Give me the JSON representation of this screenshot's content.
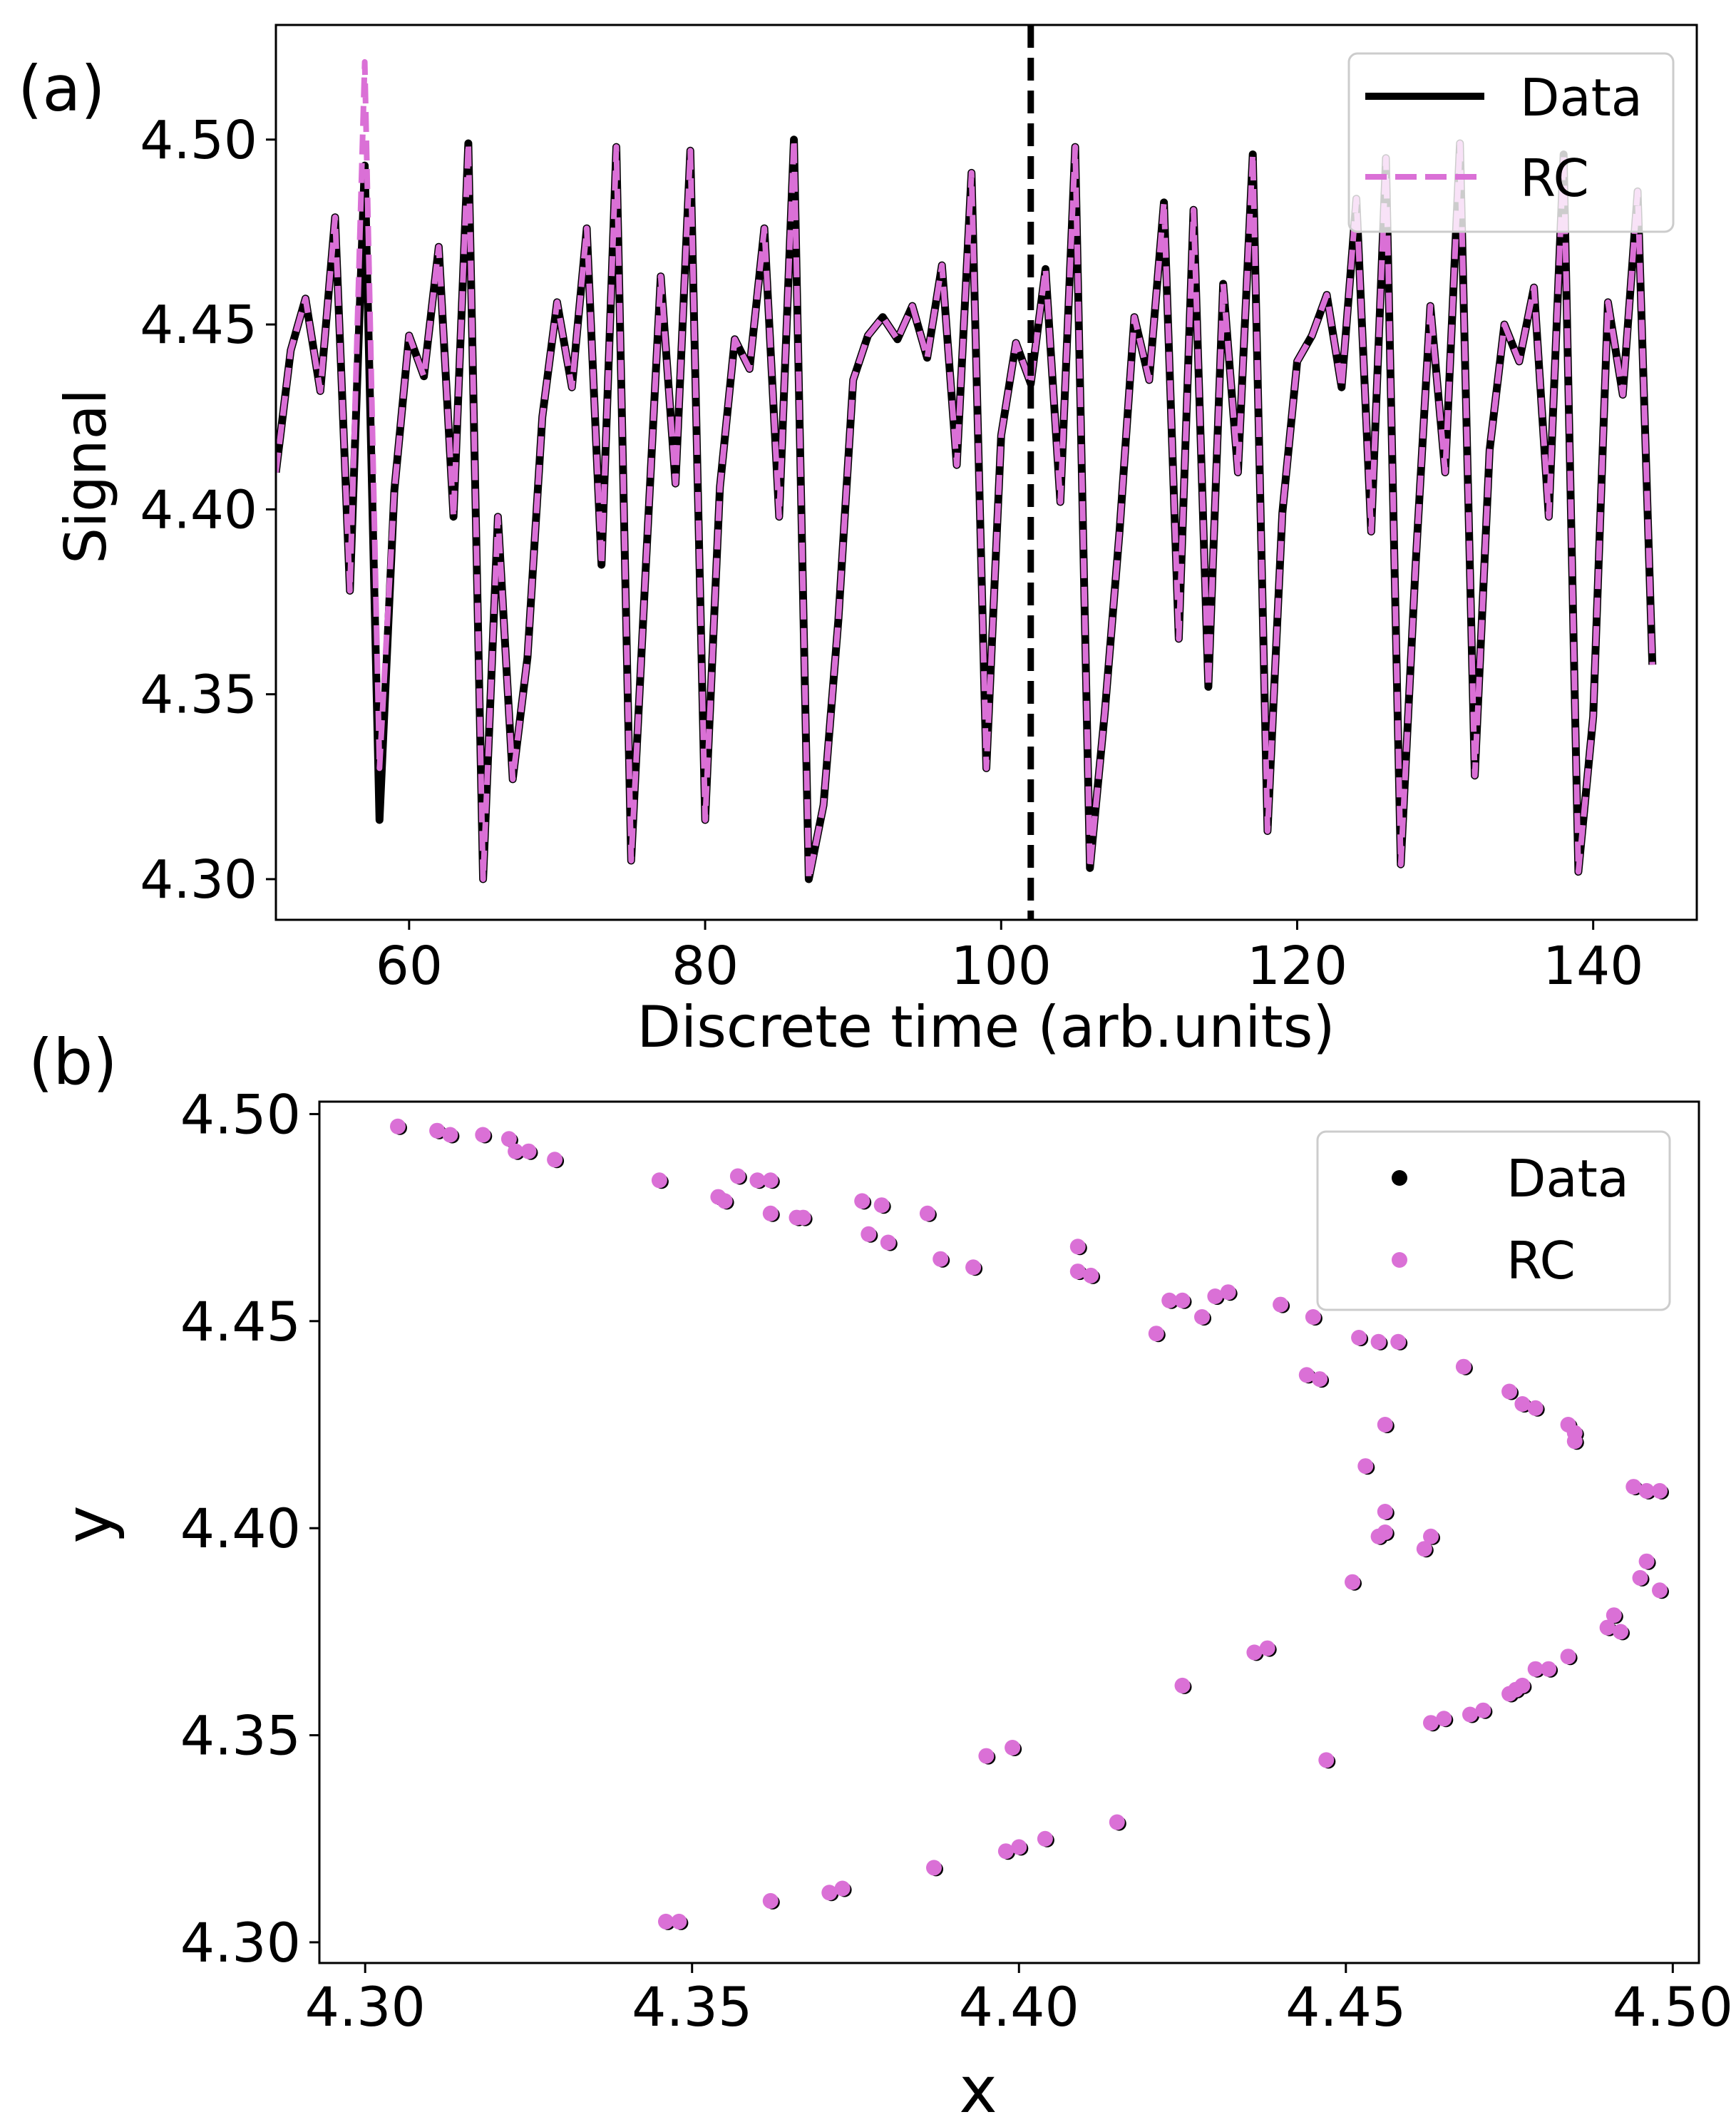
{
  "colors": {
    "data": "#000000",
    "rc": "#da70d6",
    "axis": "#000000",
    "legend_border": "#cccccc"
  },
  "chart_data": [
    {
      "panel": "(a)",
      "type": "line",
      "xlabel": "Discrete time (arb.units)",
      "ylabel": "Signal",
      "xlim": [
        51,
        147
      ],
      "ylim": [
        4.289,
        4.531
      ],
      "xticks": [
        "60",
        "80",
        "100",
        "120",
        "140"
      ],
      "xtick_values": [
        60,
        80,
        100,
        120,
        140
      ],
      "yticks": [
        "4.30",
        "4.35",
        "4.40",
        "4.45",
        "4.50"
      ],
      "ytick_values": [
        4.3,
        4.35,
        4.4,
        4.45,
        4.5
      ],
      "vline_x": 102,
      "legend": [
        "Data",
        "RC"
      ],
      "legend_position": "top-right",
      "series": [
        {
          "name": "Data",
          "x_start": 51,
          "values": [
            4.41,
            4.443,
            4.457,
            4.432,
            4.479,
            4.378,
            4.493,
            4.316,
            4.405,
            4.447,
            4.436,
            4.471,
            4.398,
            4.499,
            4.3,
            4.398,
            4.327,
            4.36,
            4.425,
            4.456,
            4.433,
            4.476,
            4.385,
            4.498,
            4.305,
            4.385,
            4.463,
            4.407,
            4.497,
            4.316,
            4.406,
            4.446,
            4.438,
            4.476,
            4.398,
            4.5,
            4.3,
            4.32,
            4.37,
            4.435,
            4.447,
            4.452,
            4.446,
            4.455,
            4.441,
            4.466,
            4.412,
            4.491,
            4.33,
            4.42,
            4.445,
            4.434,
            4.465,
            4.402,
            4.498,
            4.303,
            4.345,
            4.394,
            4.452,
            4.435,
            4.483,
            4.365,
            4.481,
            4.352,
            4.461,
            4.41,
            4.496,
            4.313,
            4.399,
            4.44,
            4.447,
            4.458,
            4.433,
            4.484,
            4.394,
            4.495,
            4.304,
            4.385,
            4.455,
            4.41,
            4.499,
            4.328,
            4.416,
            4.45,
            4.44,
            4.46,
            4.398,
            4.496,
            4.302,
            4.344,
            4.456,
            4.431,
            4.486,
            4.358
          ]
        },
        {
          "name": "RC",
          "x_start": 51,
          "values": [
            4.41,
            4.443,
            4.457,
            4.432,
            4.479,
            4.378,
            4.521,
            4.33,
            4.405,
            4.447,
            4.436,
            4.471,
            4.398,
            4.499,
            4.3,
            4.398,
            4.327,
            4.36,
            4.425,
            4.456,
            4.433,
            4.476,
            4.385,
            4.498,
            4.305,
            4.385,
            4.463,
            4.407,
            4.497,
            4.316,
            4.406,
            4.446,
            4.438,
            4.476,
            4.398,
            4.5,
            4.3,
            4.32,
            4.37,
            4.435,
            4.447,
            4.452,
            4.446,
            4.455,
            4.441,
            4.466,
            4.412,
            4.491,
            4.33,
            4.42,
            4.445,
            4.434,
            4.465,
            4.402,
            4.498,
            4.303,
            4.345,
            4.394,
            4.452,
            4.435,
            4.483,
            4.365,
            4.481,
            4.352,
            4.461,
            4.41,
            4.496,
            4.313,
            4.399,
            4.44,
            4.447,
            4.458,
            4.433,
            4.484,
            4.394,
            4.495,
            4.304,
            4.385,
            4.455,
            4.41,
            4.499,
            4.328,
            4.416,
            4.45,
            4.44,
            4.46,
            4.398,
            4.496,
            4.302,
            4.344,
            4.456,
            4.431,
            4.486,
            4.358
          ]
        }
      ]
    },
    {
      "panel": "(b)",
      "type": "scatter",
      "xlabel": "x",
      "ylabel": "y",
      "xlim": [
        4.293,
        4.504
      ],
      "ylim": [
        4.295,
        4.503
      ],
      "xticks": [
        "4.30",
        "4.35",
        "4.40",
        "4.45",
        "4.50"
      ],
      "xtick_values": [
        4.3,
        4.35,
        4.4,
        4.45,
        4.5
      ],
      "yticks": [
        "4.30",
        "4.35",
        "4.40",
        "4.45",
        "4.50"
      ],
      "ytick_values": [
        4.3,
        4.35,
        4.4,
        4.45,
        4.5
      ],
      "legend": [
        "Data",
        "RC"
      ],
      "legend_position": "top-right",
      "points": [
        [
          4.305,
          4.497
        ],
        [
          4.311,
          4.496
        ],
        [
          4.313,
          4.495
        ],
        [
          4.318,
          4.495
        ],
        [
          4.322,
          4.494
        ],
        [
          4.323,
          4.491
        ],
        [
          4.325,
          4.491
        ],
        [
          4.329,
          4.489
        ],
        [
          4.345,
          4.484
        ],
        [
          4.354,
          4.48
        ],
        [
          4.355,
          4.479
        ],
        [
          4.357,
          4.485
        ],
        [
          4.36,
          4.484
        ],
        [
          4.362,
          4.484
        ],
        [
          4.362,
          4.476
        ],
        [
          4.366,
          4.475
        ],
        [
          4.367,
          4.475
        ],
        [
          4.376,
          4.479
        ],
        [
          4.377,
          4.471
        ],
        [
          4.379,
          4.478
        ],
        [
          4.38,
          4.469
        ],
        [
          4.386,
          4.476
        ],
        [
          4.388,
          4.465
        ],
        [
          4.393,
          4.463
        ],
        [
          4.409,
          4.468
        ],
        [
          4.409,
          4.462
        ],
        [
          4.411,
          4.461
        ],
        [
          4.421,
          4.447
        ],
        [
          4.423,
          4.455
        ],
        [
          4.425,
          4.455
        ],
        [
          4.428,
          4.451
        ],
        [
          4.43,
          4.456
        ],
        [
          4.432,
          4.457
        ],
        [
          4.44,
          4.454
        ],
        [
          4.445,
          4.451
        ],
        [
          4.444,
          4.437
        ],
        [
          4.446,
          4.436
        ],
        [
          4.452,
          4.446
        ],
        [
          4.455,
          4.445
        ],
        [
          4.458,
          4.445
        ],
        [
          4.468,
          4.439
        ],
        [
          4.475,
          4.433
        ],
        [
          4.477,
          4.43
        ],
        [
          4.479,
          4.429
        ],
        [
          4.484,
          4.425
        ],
        [
          4.485,
          4.423
        ],
        [
          4.485,
          4.421
        ],
        [
          4.456,
          4.425
        ],
        [
          4.453,
          4.415
        ],
        [
          4.456,
          4.404
        ],
        [
          4.455,
          4.398
        ],
        [
          4.456,
          4.399
        ],
        [
          4.462,
          4.395
        ],
        [
          4.463,
          4.398
        ],
        [
          4.451,
          4.387
        ],
        [
          4.494,
          4.41
        ],
        [
          4.496,
          4.409
        ],
        [
          4.498,
          4.409
        ],
        [
          4.496,
          4.392
        ],
        [
          4.495,
          4.388
        ],
        [
          4.498,
          4.385
        ],
        [
          4.49,
          4.376
        ],
        [
          4.492,
          4.375
        ],
        [
          4.491,
          4.379
        ],
        [
          4.484,
          4.369
        ],
        [
          4.481,
          4.366
        ],
        [
          4.479,
          4.366
        ],
        [
          4.477,
          4.362
        ],
        [
          4.475,
          4.36
        ],
        [
          4.476,
          4.361
        ],
        [
          4.471,
          4.356
        ],
        [
          4.469,
          4.355
        ],
        [
          4.465,
          4.354
        ],
        [
          4.463,
          4.353
        ],
        [
          4.447,
          4.344
        ],
        [
          4.436,
          4.37
        ],
        [
          4.438,
          4.371
        ],
        [
          4.425,
          4.362
        ],
        [
          4.415,
          4.329
        ],
        [
          4.404,
          4.325
        ],
        [
          4.398,
          4.322
        ],
        [
          4.4,
          4.323
        ],
        [
          4.399,
          4.347
        ],
        [
          4.395,
          4.345
        ],
        [
          4.387,
          4.318
        ],
        [
          4.371,
          4.312
        ],
        [
          4.373,
          4.313
        ],
        [
          4.362,
          4.31
        ],
        [
          4.346,
          4.305
        ],
        [
          4.348,
          4.305
        ]
      ]
    }
  ],
  "labels": {
    "panel_a": "(a)",
    "panel_b": "(b)"
  }
}
